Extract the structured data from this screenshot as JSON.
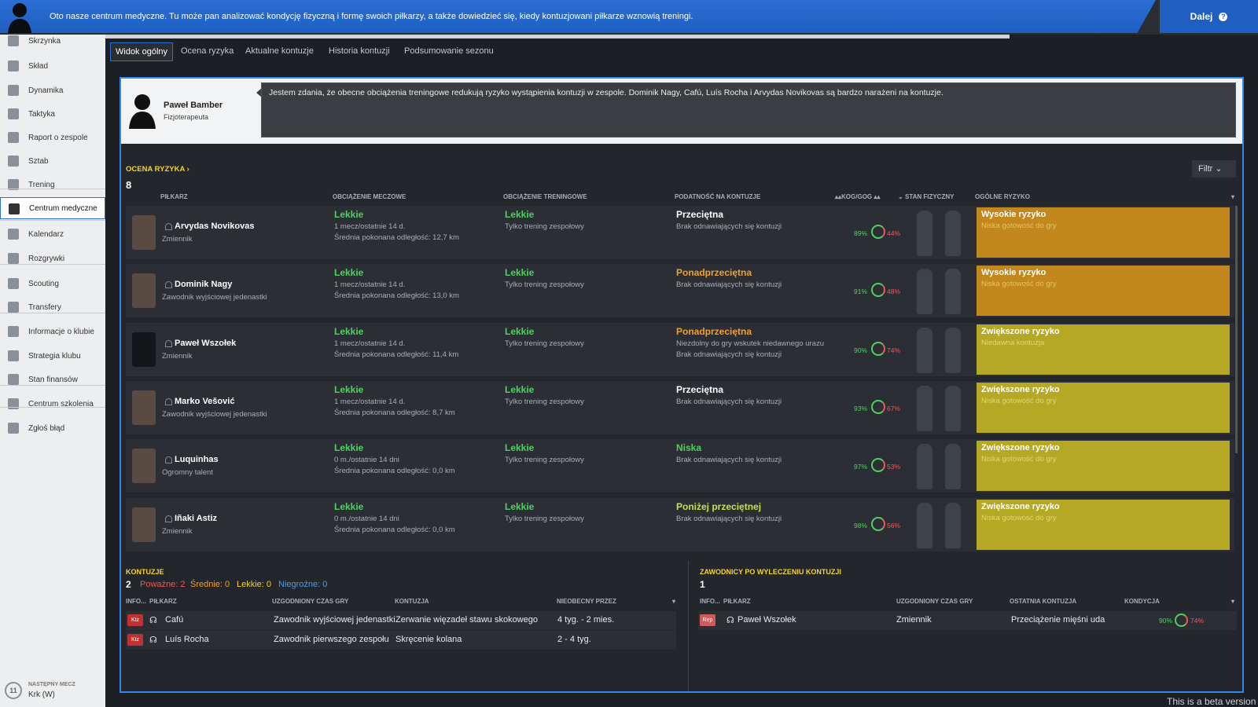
{
  "banner": {
    "text": "Oto nasze centrum medyczne. Tu może pan analizować kondycję fizyczną i formę swoich piłkarzy, a także dowiedzieć się, kiedy kontuzjowani piłkarze wznowią treningi.",
    "next_label": "Dalej"
  },
  "sidebar": {
    "items": [
      {
        "label": "Skrzynka",
        "icon": "inbox-icon"
      },
      {
        "label": "Skład",
        "icon": "squad-icon"
      },
      {
        "label": "Dynamika",
        "icon": "dynamics-icon"
      },
      {
        "label": "Taktyka",
        "icon": "tactics-icon"
      },
      {
        "label": "Raport o zespole",
        "icon": "report-icon"
      },
      {
        "label": "Sztab",
        "icon": "staff-icon"
      },
      {
        "label": "Trening",
        "icon": "training-icon"
      },
      {
        "label": "Centrum medyczne",
        "icon": "medical-icon"
      },
      {
        "label": "Kalendarz",
        "icon": "calendar-icon"
      },
      {
        "label": "Rozgrywki",
        "icon": "trophy-icon"
      },
      {
        "label": "Scouting",
        "icon": "scouting-icon"
      },
      {
        "label": "Transfery",
        "icon": "transfers-icon"
      },
      {
        "label": "Informacje o klubie",
        "icon": "club-info-icon"
      },
      {
        "label": "Strategia klubu",
        "icon": "strategy-icon"
      },
      {
        "label": "Stan finansów",
        "icon": "finance-icon"
      },
      {
        "label": "Centrum szkolenia",
        "icon": "development-icon"
      },
      {
        "label": "Zgłoś błąd",
        "icon": "bug-report-icon"
      }
    ],
    "next_match_label": "NASTĘPNY MECZ",
    "next_match_value": "Krk (W)",
    "next_match_number": "11"
  },
  "tabs": [
    "Widok ogólny",
    "Ocena ryzyka",
    "Aktualne kontuzje",
    "Historia kontuzji",
    "Podsumowanie sezonu"
  ],
  "coach": {
    "name": "Paweł Bamber",
    "role": "Fizjoterapeuta",
    "message": "Jestem zdania, że obecne obciążenia treningowe redukują ryzyko wystąpienia kontuzji w zespole. Dominik Nagy, Cafú, Luís Rocha i Arvydas Novikovas są bardzo narażeni na kontuzje."
  },
  "risk": {
    "title": "OCENA RYZYKA",
    "count": "8",
    "filter_label": "Filtr",
    "columns": {
      "player": "PIŁKARZ",
      "match_load": "OBCIĄŻENIE MECZOWE",
      "training_load": "OBCIĄŻENIE TRENINGOWE",
      "susceptibility": "PODATNOŚĆ NA KONTUZJE",
      "kog": "KOG/GOG",
      "condition": "STAN FIZYCZNY",
      "overall": "OGÓLNE RYZYKO"
    },
    "rows": [
      {
        "name": "Arvydas Novikovas",
        "position": "Zmiennik",
        "match_load": "Lekkie",
        "matches": "1 mecz/ostatnie 14 d.",
        "distance": "Średnia pokonana odległość: 12,7 km",
        "training_load": "Lekkie",
        "training": "Tylko trening zespołowy",
        "susc": "Przeciętna",
        "susc_color": "#ffffff",
        "susc_note1": "Brak odnawiających się kontuzji",
        "susc_note2": "",
        "kog": "89%",
        "gog": "44%",
        "risk": "Wysokie ryzyko",
        "risk_note": "Niska gotowość do gry",
        "level": "high",
        "silhouette": false
      },
      {
        "name": "Dominik Nagy",
        "position": "Zawodnik wyjściowej jedenastki",
        "match_load": "Lekkie",
        "matches": "1 mecz/ostatnie 14 d.",
        "distance": "Średnia pokonana odległość: 13,0 km",
        "training_load": "Lekkie",
        "training": "Tylko trening zespołowy",
        "susc": "Ponadprzeciętna",
        "susc_color": "#f0a030",
        "susc_note1": "Brak odnawiających się kontuzji",
        "susc_note2": "",
        "kog": "91%",
        "gog": "48%",
        "risk": "Wysokie ryzyko",
        "risk_note": "Niska gotowość do gry",
        "level": "high",
        "silhouette": false
      },
      {
        "name": "Paweł Wszołek",
        "position": "Zmiennik",
        "match_load": "Lekkie",
        "matches": "1 mecz/ostatnie 14 d.",
        "distance": "Średnia pokonana odległość: 11,4 km",
        "training_load": "Lekkie",
        "training": "Tylko trening zespołowy",
        "susc": "Ponadprzeciętna",
        "susc_color": "#f0a030",
        "susc_note1": "Niezdolny do gry wskutek niedawnego urazu",
        "susc_note2": "Brak odnawiających się kontuzji",
        "kog": "90%",
        "gog": "74%",
        "risk": "Zwiększone ryzyko",
        "risk_note": "Niedawna kontuzja",
        "level": "med",
        "silhouette": true
      },
      {
        "name": "Marko Vešović",
        "position": "Zawodnik wyjściowej jedenastki",
        "match_load": "Lekkie",
        "matches": "1 mecz/ostatnie 14 d.",
        "distance": "Średnia pokonana odległość: 8,7 km",
        "training_load": "Lekkie",
        "training": "Tylko trening zespołowy",
        "susc": "Przeciętna",
        "susc_color": "#ffffff",
        "susc_note1": "Brak odnawiających się kontuzji",
        "susc_note2": "",
        "kog": "93%",
        "gog": "67%",
        "risk": "Zwiększone ryzyko",
        "risk_note": "Niska gotowość do gry",
        "level": "med",
        "silhouette": false
      },
      {
        "name": "Luquinhas",
        "position": "Ogromny talent",
        "match_load": "Lekkie",
        "matches": "0 m./ostatnie 14 dni",
        "distance": "Średnia pokonana odległość: 0,0 km",
        "training_load": "Lekkie",
        "training": "Tylko trening zespołowy",
        "susc": "Niska",
        "susc_color": "#4fd15e",
        "susc_note1": "Brak odnawiających się kontuzji",
        "susc_note2": "",
        "kog": "97%",
        "gog": "53%",
        "risk": "Zwiększone ryzyko",
        "risk_note": "Niska gotowość do gry",
        "level": "med",
        "silhouette": false
      },
      {
        "name": "Iñaki Astiz",
        "position": "Zmiennik",
        "match_load": "Lekkie",
        "matches": "0 m./ostatnie 14 dni",
        "distance": "Średnia pokonana odległość: 0,0 km",
        "training_load": "Lekkie",
        "training": "Tylko trening zespołowy",
        "susc": "Poniżej przeciętnej",
        "susc_color": "#c8e04a",
        "susc_note1": "Brak odnawiających się kontuzji",
        "susc_note2": "",
        "kog": "98%",
        "gog": "56%",
        "risk": "Zwiększone ryzyko",
        "risk_note": "Niska gotowość do gry",
        "level": "med",
        "silhouette": false
      }
    ]
  },
  "injuries": {
    "title": "KONTUZJE",
    "count": "2",
    "serious": "Poważne: 2",
    "medium": "Średnie: 0",
    "light": "Lekkie: 0",
    "minor": "Niegroźne: 0",
    "columns": {
      "info": "INFO...",
      "player": "PIŁKARZ",
      "playing_time": "UZGODNIONY CZAS GRY",
      "injury": "KONTUZJA",
      "absent": "NIEOBECNY PRZEZ"
    },
    "rows": [
      {
        "badge": "Ktz",
        "name": "Cafú",
        "playing_time": "Zawodnik wyjściowej jedenastki",
        "injury": "Zerwanie więzadeł stawu skokowego",
        "absent": "4 tyg. - 2 mies."
      },
      {
        "badge": "Ktz",
        "name": "Luís Rocha",
        "playing_time": "Zawodnik pierwszego zespołu",
        "injury": "Skręcenie kolana",
        "absent": "2 - 4 tyg."
      }
    ]
  },
  "recovered": {
    "title": "ZAWODNICY PO WYLECZENIU KONTUZJI",
    "count": "1",
    "columns": {
      "info": "INFO...",
      "player": "PIŁKARZ",
      "playing_time": "UZGODNIONY CZAS GRY",
      "last_injury": "OSTATNIA KONTUZJA",
      "condition": "KONDYCJA"
    },
    "rows": [
      {
        "badge": "Rep",
        "name": "Paweł Wszołek",
        "playing_time": "Zmiennik",
        "last_injury": "Przeciążenie mięśni uda",
        "cond1": "90%",
        "cond2": "74%"
      }
    ]
  },
  "beta_note": "This is a beta version"
}
